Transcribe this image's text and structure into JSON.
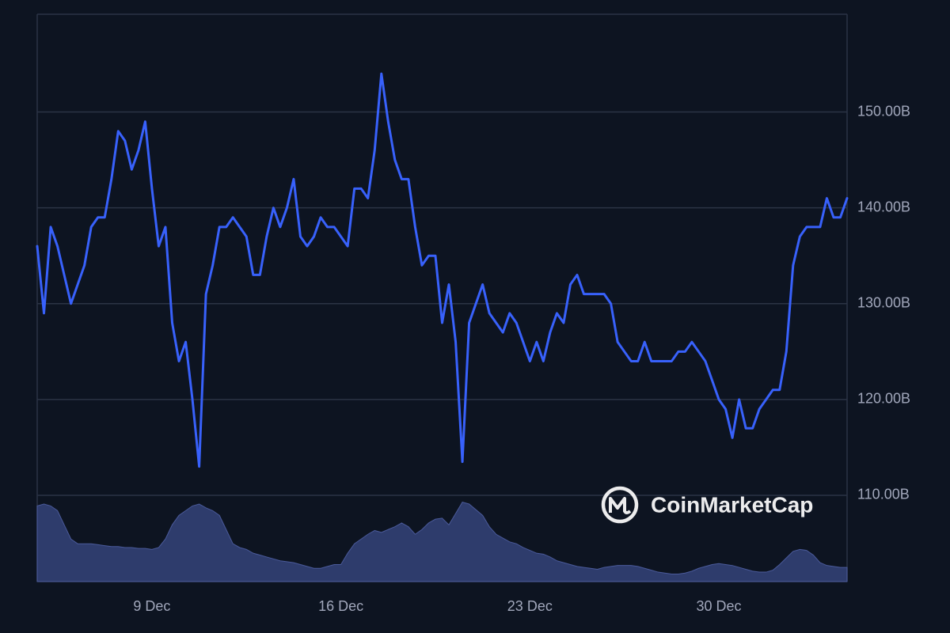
{
  "chart_data": {
    "type": "line",
    "categories": [
      null,
      null,
      null,
      null,
      null,
      null,
      null,
      null,
      null,
      null,
      null,
      null,
      null,
      null,
      null,
      null,
      null,
      "9 Dec",
      null,
      null,
      null,
      null,
      null,
      null,
      null,
      null,
      null,
      null,
      null,
      null,
      null,
      null,
      null,
      null,
      null,
      null,
      null,
      null,
      null,
      null,
      null,
      null,
      null,
      null,
      null,
      "16 Dec",
      null,
      null,
      null,
      null,
      null,
      null,
      null,
      null,
      null,
      null,
      null,
      null,
      null,
      null,
      null,
      null,
      null,
      null,
      null,
      null,
      null,
      null,
      null,
      null,
      null,
      null,
      null,
      "23 Dec",
      null,
      null,
      null,
      null,
      null,
      null,
      null,
      null,
      null,
      null,
      null,
      null,
      null,
      null,
      null,
      null,
      null,
      null,
      null,
      null,
      null,
      null,
      null,
      null,
      null,
      null,
      null,
      "30 Dec",
      null,
      null,
      null,
      null,
      null,
      null,
      null,
      null,
      null,
      null,
      null,
      null,
      null,
      null,
      null,
      null,
      null,
      null,
      null
    ],
    "values": [
      136,
      129,
      138,
      136,
      133,
      130,
      132,
      134,
      138,
      139,
      139,
      143,
      148,
      147,
      144,
      146,
      149,
      142,
      136,
      138,
      128,
      124,
      126,
      120,
      113,
      131,
      134,
      138,
      138,
      139,
      138,
      137,
      133,
      133,
      137,
      140,
      138,
      140,
      143,
      137,
      136,
      137,
      139,
      138,
      138,
      137,
      136,
      142,
      142,
      141,
      146,
      154,
      149,
      145,
      143,
      143,
      138,
      134,
      135,
      135,
      128,
      132,
      126,
      113.5,
      128,
      130,
      132,
      129,
      128,
      127,
      129,
      128,
      126,
      124,
      126,
      124,
      127,
      129,
      128,
      132,
      133,
      131,
      131,
      131,
      131,
      130,
      126,
      125,
      124,
      124,
      126,
      124,
      124,
      124,
      124,
      125,
      125,
      126,
      125,
      124,
      122,
      120,
      119,
      116,
      120,
      117,
      117,
      119,
      120,
      121,
      121,
      125,
      134,
      137,
      138,
      138,
      138,
      141,
      139,
      139,
      141
    ],
    "color": "#3861fb",
    "volume_values": [
      80,
      82,
      80,
      75,
      60,
      45,
      40,
      40,
      40,
      39,
      38,
      37,
      37,
      36,
      36,
      35,
      35,
      34,
      36,
      45,
      60,
      70,
      75,
      80,
      82,
      78,
      75,
      70,
      55,
      40,
      36,
      34,
      30,
      28,
      26,
      24,
      22,
      21,
      20,
      18,
      16,
      14,
      14,
      16,
      18,
      18,
      30,
      40,
      45,
      50,
      54,
      52,
      55,
      58,
      62,
      58,
      50,
      55,
      62,
      66,
      67,
      60,
      72,
      84,
      82,
      76,
      70,
      58,
      50,
      46,
      42,
      40,
      36,
      33,
      30,
      29,
      26,
      22,
      20,
      18,
      16,
      15,
      14,
      13,
      15,
      16,
      17,
      17,
      17,
      16,
      14,
      12,
      10,
      9,
      8,
      8,
      9,
      11,
      14,
      16,
      18,
      19,
      18,
      17,
      15,
      13,
      11,
      10,
      10,
      12,
      18,
      25,
      32,
      34,
      33,
      28,
      20,
      17,
      16,
      15,
      15
    ],
    "volume_color": "#3a4a85",
    "y2lim": [
      0,
      600
    ],
    "ylim": [
      101,
      160.2
    ],
    "yticks": [
      {
        "value": 110,
        "label": "110.00B"
      },
      {
        "value": 120,
        "label": "120.00B"
      },
      {
        "value": 130,
        "label": "130.00B"
      },
      {
        "value": 140,
        "label": "140.00B"
      },
      {
        "value": 150,
        "label": "150.00B"
      }
    ],
    "grid": true,
    "watermark": "CoinMarketCap"
  }
}
